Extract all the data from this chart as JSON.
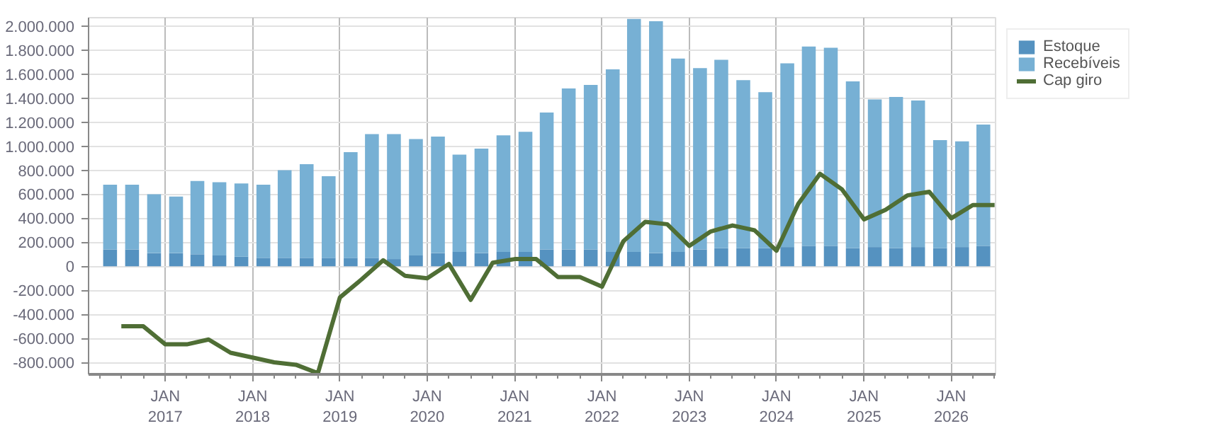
{
  "chart_data": {
    "type": "bar",
    "stacked": true,
    "x": [
      "2016-05-15",
      "2016-08-15",
      "2016-11-15",
      "2017-02-15",
      "2017-05-15",
      "2017-08-15",
      "2017-11-15",
      "2018-02-15",
      "2018-05-15",
      "2018-08-15",
      "2018-11-15",
      "2019-02-15",
      "2019-05-15",
      "2019-08-15",
      "2019-11-15",
      "2020-02-15",
      "2020-05-15",
      "2020-08-15",
      "2020-11-15",
      "2021-02-15",
      "2021-05-15",
      "2021-08-15",
      "2021-11-15",
      "2022-02-15",
      "2022-05-15",
      "2022-08-15",
      "2022-11-15",
      "2023-02-15",
      "2023-05-15",
      "2023-08-15",
      "2023-11-15",
      "2024-02-15",
      "2024-05-15",
      "2024-08-15",
      "2024-11-15",
      "2025-02-15",
      "2025-05-15",
      "2025-08-15",
      "2025-11-15",
      "2026-02-15",
      "2026-05-15"
    ],
    "series": [
      {
        "name": "Estoque",
        "color": "#5592c0",
        "values": [
          140000,
          140000,
          110000,
          110000,
          100000,
          90000,
          80000,
          70000,
          70000,
          70000,
          70000,
          70000,
          70000,
          60000,
          90000,
          110000,
          120000,
          110000,
          120000,
          120000,
          140000,
          140000,
          140000,
          120000,
          120000,
          110000,
          120000,
          140000,
          150000,
          150000,
          150000,
          160000,
          170000,
          170000,
          150000,
          160000,
          150000,
          160000,
          150000,
          160000,
          170000
        ]
      },
      {
        "name": "Recebíveis",
        "color": "#77b0d4",
        "values": [
          540000,
          540000,
          490000,
          470000,
          610000,
          610000,
          610000,
          610000,
          730000,
          780000,
          680000,
          880000,
          1030000,
          1040000,
          970000,
          970000,
          810000,
          870000,
          970000,
          1000000,
          1140000,
          1340000,
          1370000,
          1520000,
          1940000,
          1930000,
          1610000,
          1510000,
          1570000,
          1400000,
          1300000,
          1530000,
          1660000,
          1650000,
          1390000,
          1230000,
          1260000,
          1220000,
          900000,
          880000,
          1010000
        ]
      },
      {
        "name": "Cap giro",
        "type": "line",
        "color": "#4f6e35",
        "line_style": "solid",
        "x": [
          "2016-07-01",
          "2016-10-01",
          "2017-01-01",
          "2017-04-01",
          "2017-07-01",
          "2017-10-01",
          "2018-01-01",
          "2018-04-01",
          "2018-07-01",
          "2018-10-01",
          "2019-01-01",
          "2019-04-01",
          "2019-07-01",
          "2019-10-01",
          "2020-01-01",
          "2020-04-01",
          "2020-07-01",
          "2020-10-01",
          "2021-01-01",
          "2021-04-01",
          "2021-07-01",
          "2021-10-01",
          "2022-01-01",
          "2022-04-01",
          "2022-07-01",
          "2022-10-01",
          "2023-01-01",
          "2023-04-01",
          "2023-07-01",
          "2023-10-01",
          "2024-01-01",
          "2024-04-01",
          "2024-07-01",
          "2024-10-01",
          "2025-01-01",
          "2025-04-01",
          "2025-07-01",
          "2025-10-01",
          "2026-01-01",
          "2026-04-01",
          "2026-07-01"
        ],
        "values": [
          -500000,
          -500000,
          -650000,
          -650000,
          -610000,
          -720000,
          -760000,
          -800000,
          -820000,
          -890000,
          -260000,
          -110000,
          50000,
          -80000,
          -100000,
          20000,
          -280000,
          30000,
          60000,
          60000,
          -90000,
          -90000,
          -170000,
          210000,
          370000,
          350000,
          170000,
          290000,
          340000,
          300000,
          130000,
          520000,
          770000,
          640000,
          390000,
          470000,
          590000,
          620000,
          400000,
          510000,
          510000
        ]
      }
    ],
    "xlim": [
      "2016-02-15",
      "2026-07-05"
    ],
    "xticks": [
      {
        "value": "2016-04-01",
        "label": null
      },
      {
        "value": "2016-07-01",
        "label": null
      },
      {
        "value": "2016-10-01",
        "label": null
      },
      {
        "value": "2017-01-01",
        "label": "JAN\n2017"
      },
      {
        "value": "2017-04-01",
        "label": null
      },
      {
        "value": "2017-07-01",
        "label": null
      },
      {
        "value": "2017-10-01",
        "label": null
      },
      {
        "value": "2018-01-01",
        "label": "JAN\n2018"
      },
      {
        "value": "2018-04-01",
        "label": null
      },
      {
        "value": "2018-07-01",
        "label": null
      },
      {
        "value": "2018-10-01",
        "label": null
      },
      {
        "value": "2019-01-01",
        "label": "JAN\n2019"
      },
      {
        "value": "2019-04-01",
        "label": null
      },
      {
        "value": "2019-07-01",
        "label": null
      },
      {
        "value": "2019-10-01",
        "label": null
      },
      {
        "value": "2020-01-01",
        "label": "JAN\n2020"
      },
      {
        "value": "2020-04-01",
        "label": null
      },
      {
        "value": "2020-07-01",
        "label": null
      },
      {
        "value": "2020-10-01",
        "label": null
      },
      {
        "value": "2021-01-01",
        "label": "JAN\n2021"
      },
      {
        "value": "2021-04-01",
        "label": null
      },
      {
        "value": "2021-07-01",
        "label": null
      },
      {
        "value": "2021-10-01",
        "label": null
      },
      {
        "value": "2022-01-01",
        "label": "JAN\n2022"
      },
      {
        "value": "2022-04-01",
        "label": null
      },
      {
        "value": "2022-07-01",
        "label": null
      },
      {
        "value": "2022-10-01",
        "label": null
      },
      {
        "value": "2023-01-01",
        "label": "JAN\n2023"
      },
      {
        "value": "2023-04-01",
        "label": null
      },
      {
        "value": "2023-07-01",
        "label": null
      },
      {
        "value": "2023-10-01",
        "label": null
      },
      {
        "value": "2024-01-01",
        "label": "JAN\n2024"
      },
      {
        "value": "2024-04-01",
        "label": null
      },
      {
        "value": "2024-07-01",
        "label": null
      },
      {
        "value": "2024-10-01",
        "label": null
      },
      {
        "value": "2025-01-01",
        "label": "JAN\n2025"
      },
      {
        "value": "2025-04-01",
        "label": null
      },
      {
        "value": "2025-07-01",
        "label": null
      },
      {
        "value": "2025-10-01",
        "label": null
      },
      {
        "value": "2026-01-01",
        "label": "JAN\n2026"
      },
      {
        "value": "2026-04-01",
        "label": null
      },
      {
        "value": "2026-07-01",
        "label": null
      }
    ],
    "ylim": [
      -900000,
      2070000
    ],
    "yticks": [
      {
        "value": -800000,
        "label": "-800.000"
      },
      {
        "value": -600000,
        "label": "-600.000"
      },
      {
        "value": -400000,
        "label": "-400.000"
      },
      {
        "value": -200000,
        "label": "-200.000"
      },
      0,
      {
        "value": 200000,
        "label": "200.000"
      },
      {
        "value": 400000,
        "label": "400.000"
      },
      {
        "value": 600000,
        "label": "600.000"
      },
      {
        "value": 800000,
        "label": "800.000"
      },
      {
        "value": 1000000,
        "label": "1.000.000"
      },
      {
        "value": 1200000,
        "label": "1.200.000"
      },
      {
        "value": 1400000,
        "label": "1.400.000"
      },
      {
        "value": 1600000,
        "label": "1.600.000"
      },
      {
        "value": 1800000,
        "label": "1.800.000"
      },
      {
        "value": 2000000,
        "label": "2.000.000"
      }
    ],
    "grid": true,
    "legend": "top right"
  }
}
